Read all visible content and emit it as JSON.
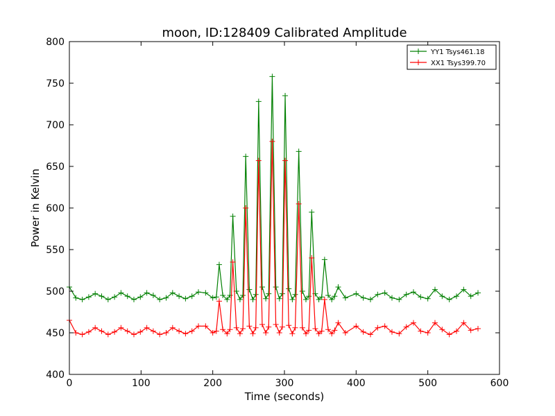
{
  "chart_data": {
    "type": "line",
    "title": "moon, ID:128409 Calibrated Amplitude",
    "xlabel": "Time (seconds)",
    "ylabel": "Power in Kelvin",
    "xlim": [
      0,
      600
    ],
    "ylim": [
      400,
      800
    ],
    "xticks": [
      0,
      100,
      200,
      300,
      400,
      500,
      600
    ],
    "yticks": [
      400,
      450,
      500,
      550,
      600,
      650,
      700,
      750,
      800
    ],
    "grid": false,
    "legend_position": "top-right",
    "marker": "+",
    "series": [
      {
        "name": "YY1 Tsys461.18",
        "color": "#007f00",
        "x": [
          0,
          9,
          18,
          27,
          36,
          45,
          54,
          63,
          72,
          81,
          90,
          99,
          108,
          117,
          126,
          135,
          144,
          153,
          162,
          171,
          180,
          190,
          200,
          205,
          209,
          214,
          220,
          224,
          228,
          233,
          238,
          242,
          246,
          251,
          256,
          260,
          264,
          269,
          274,
          278,
          283,
          288,
          293,
          297,
          301,
          306,
          311,
          315,
          320,
          325,
          330,
          334,
          338,
          343,
          348,
          352,
          356,
          361,
          366,
          370,
          375,
          385,
          400,
          410,
          420,
          430,
          440,
          450,
          460,
          470,
          480,
          490,
          500,
          510,
          520,
          530,
          540,
          550,
          560,
          570
        ],
        "y": [
          505,
          492,
          490,
          493,
          497,
          494,
          490,
          493,
          498,
          494,
          490,
          493,
          498,
          495,
          490,
          492,
          498,
          494,
          491,
          494,
          499,
          498,
          492,
          493,
          532,
          495,
          490,
          495,
          590,
          500,
          490,
          495,
          662,
          502,
          490,
          496,
          728,
          505,
          491,
          497,
          758,
          505,
          491,
          497,
          735,
          503,
          490,
          496,
          668,
          500,
          490,
          494,
          595,
          497,
          490,
          493,
          538,
          495,
          490,
          494,
          505,
          492,
          497,
          492,
          490,
          496,
          498,
          492,
          490,
          496,
          499,
          493,
          491,
          502,
          494,
          490,
          494,
          502,
          494,
          498
        ]
      },
      {
        "name": "XX1 Tsys399.70",
        "color": "#ff0000",
        "x": [
          0,
          9,
          18,
          27,
          36,
          45,
          54,
          63,
          72,
          81,
          90,
          99,
          108,
          117,
          126,
          135,
          144,
          153,
          162,
          171,
          180,
          190,
          200,
          205,
          209,
          214,
          220,
          224,
          228,
          233,
          238,
          242,
          246,
          251,
          256,
          260,
          264,
          269,
          274,
          278,
          283,
          288,
          293,
          297,
          301,
          306,
          311,
          315,
          320,
          325,
          330,
          334,
          338,
          343,
          348,
          352,
          356,
          361,
          366,
          370,
          375,
          385,
          400,
          410,
          420,
          430,
          440,
          450,
          460,
          470,
          480,
          490,
          500,
          510,
          520,
          530,
          540,
          550,
          560,
          570
        ],
        "y": [
          465,
          450,
          448,
          451,
          456,
          452,
          448,
          451,
          456,
          452,
          448,
          451,
          456,
          452,
          448,
          450,
          456,
          452,
          449,
          452,
          458,
          458,
          450,
          452,
          488,
          454,
          449,
          454,
          535,
          456,
          449,
          455,
          600,
          458,
          449,
          456,
          657,
          460,
          450,
          457,
          680,
          460,
          450,
          457,
          657,
          459,
          449,
          456,
          605,
          456,
          449,
          453,
          540,
          455,
          449,
          452,
          490,
          454,
          449,
          453,
          462,
          450,
          458,
          451,
          448,
          456,
          458,
          451,
          449,
          457,
          462,
          452,
          450,
          462,
          454,
          448,
          452,
          462,
          453,
          455
        ]
      }
    ]
  }
}
